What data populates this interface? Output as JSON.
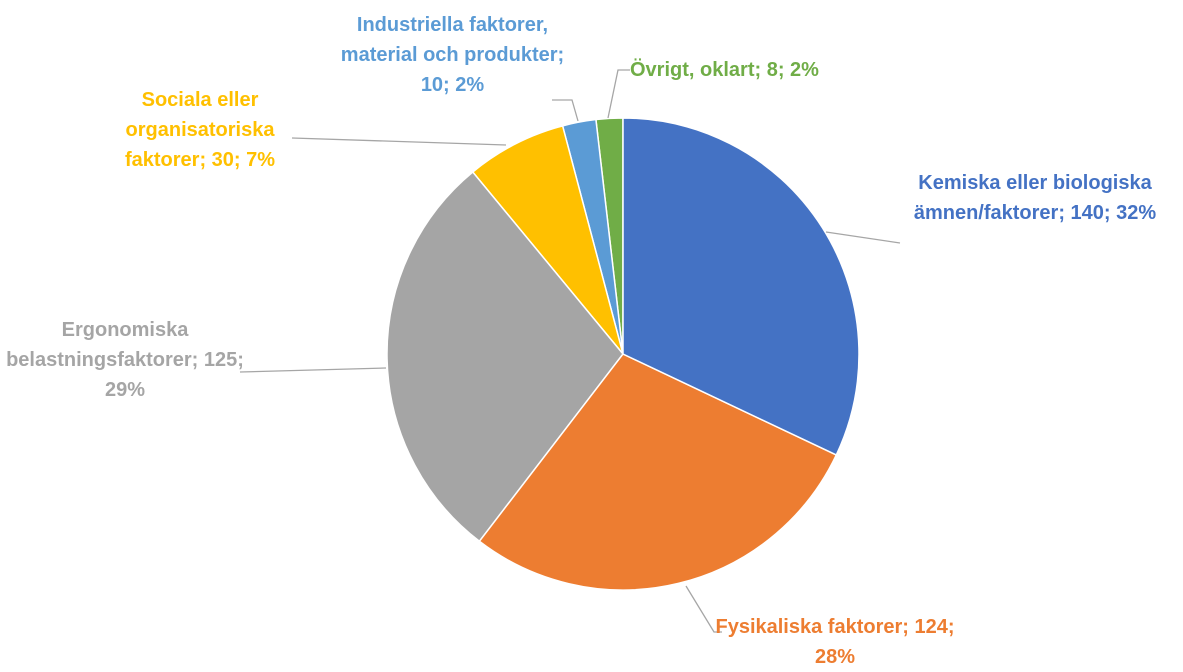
{
  "chart_data": {
    "type": "pie",
    "values": [
      140,
      124,
      125,
      30,
      10,
      8
    ],
    "value_labels": [
      "Kemiska eller biologiska ämnen/faktorer; 140; 32%",
      "Fysikaliska faktorer; 124; 28%",
      "Ergonomiska belastningsfaktorer; 125; 29%",
      "Sociala eller organisatoriska faktorer; 30; 7%",
      "Industriella faktorer, material och produkter; 10; 2%",
      "Övrigt, oklart; 8; 2%"
    ],
    "colors": [
      "#4472c4",
      "#ed7d31",
      "#a5a5a5",
      "#ffc000",
      "#5b9bd5",
      "#70ad47"
    ]
  }
}
